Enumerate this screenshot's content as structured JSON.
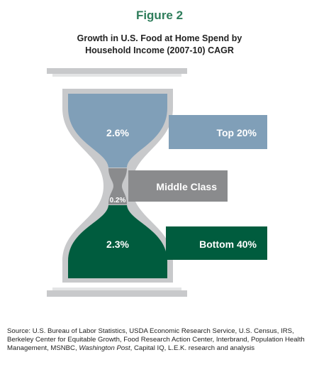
{
  "figure_label": "Figure 2",
  "colors": {
    "top": "#809fb8",
    "middle": "#8a8b8d",
    "bottom": "#005c3e",
    "frame": "#c8c9cb",
    "figure_label": "#2e7d5b"
  },
  "chart_data": {
    "type": "bar",
    "style": "hourglass infographic",
    "title": [
      "Growth in U.S. Food at Home Spend by",
      "Household Income (2007-10) CAGR"
    ],
    "xlabel": "",
    "ylabel": "",
    "categories": [
      "Top 20%",
      "Middle Class",
      "Bottom 40%"
    ],
    "values": [
      2.6,
      0.2,
      2.3
    ],
    "value_labels": [
      "2.6%",
      "0.2%",
      "2.3%"
    ],
    "unit": "%",
    "legend": "none",
    "grid": false
  },
  "source": {
    "prefix": "Source: U.S. Bureau of Labor Statistics, USDA Economic Research Service, U.S. Census, IRS, Berkeley Center for Equitable Growth, Food Research Action Center, Interbrand, Population Health Management, MSNBC, ",
    "italic": "Washington Post",
    "suffix": ", Capital IQ, L.E.K. research and analysis"
  }
}
